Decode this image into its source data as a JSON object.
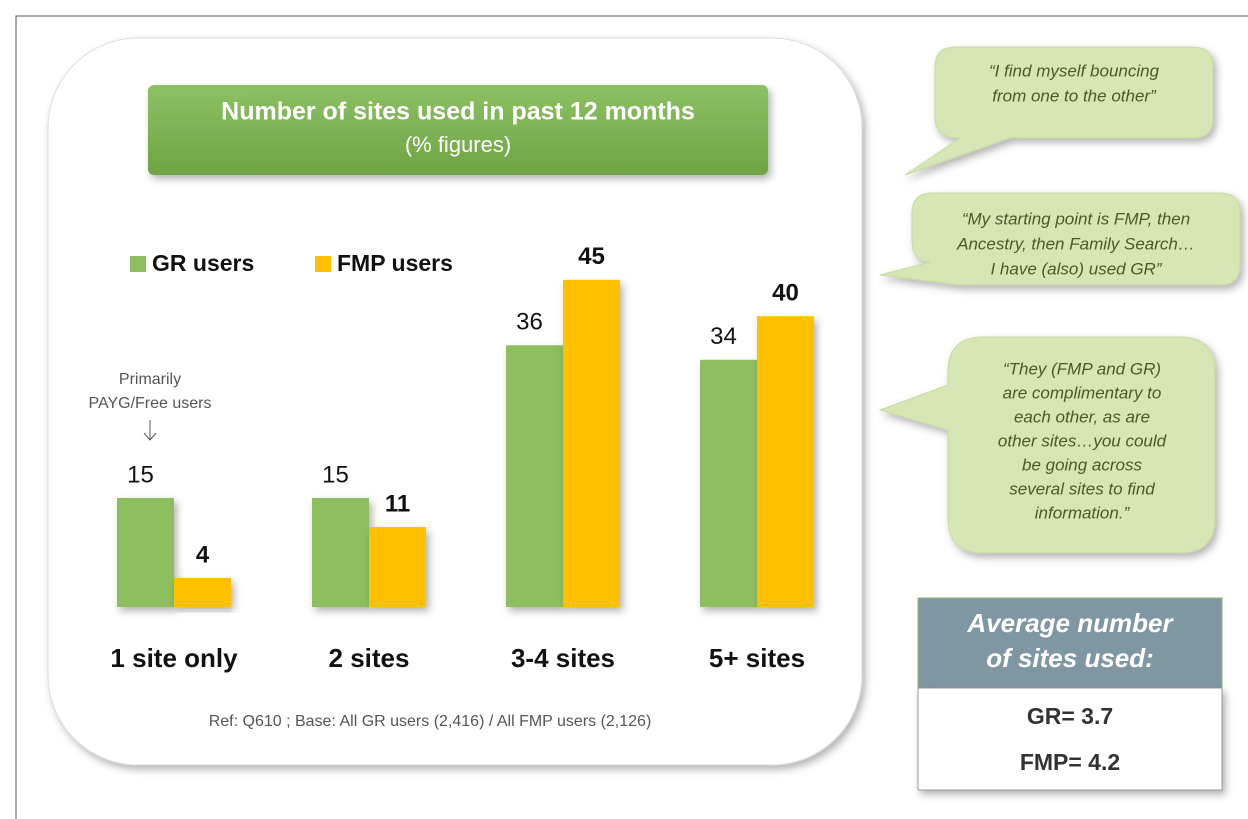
{
  "chart_data": {
    "type": "bar",
    "title": "Number of sites used in past 12 months",
    "subtitle": "(% figures)",
    "categories": [
      "1 site only",
      "2 sites",
      "3-4 sites",
      "5+ sites"
    ],
    "series": [
      {
        "name": "GR users",
        "color": "#8dbf5f",
        "values": [
          15,
          15,
          36,
          34
        ]
      },
      {
        "name": "FMP users",
        "color": "#ffc000",
        "values": [
          4,
          11,
          45,
          40
        ]
      }
    ],
    "annotation": [
      "Primarily",
      "PAYG/Free users"
    ],
    "footnote": "Ref: Q610 ; Base: All GR users (2,416) / All FMP users (2,126)"
  },
  "quotes": [
    [
      "“I find myself bouncing",
      "from one to the other”"
    ],
    [
      "“My starting point is FMP, then",
      "Ancestry, then Family Search…",
      "I have (also) used GR”"
    ],
    [
      "“They (FMP and GR)",
      "are complimentary to",
      "each other, as are",
      "other sites…you could",
      "be going across",
      "several sites to find",
      "information.”"
    ]
  ],
  "average": {
    "title": [
      "Average number",
      "of sites used:"
    ],
    "lines": [
      "GR= 3.7",
      "FMP= 4.2"
    ]
  }
}
